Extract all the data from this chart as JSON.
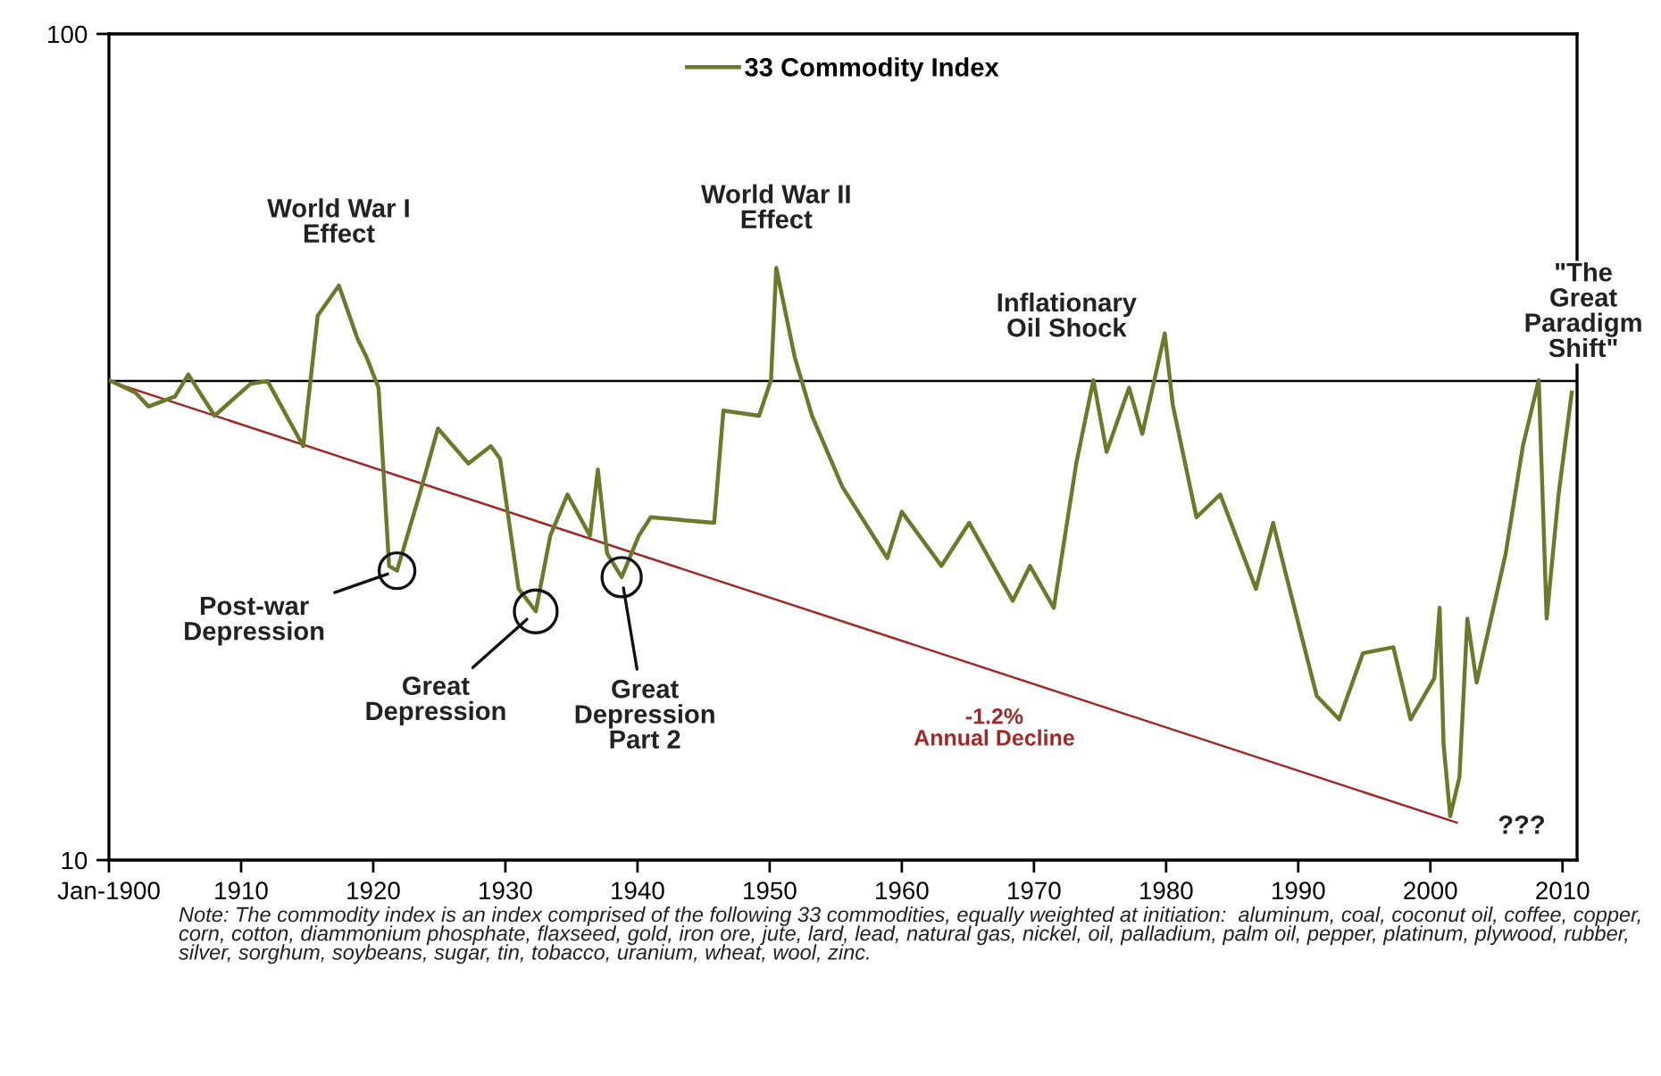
{
  "chart_data": {
    "type": "line",
    "x": [
      1900,
      1902,
      1903,
      1905,
      1906,
      1908,
      1910.7,
      1912,
      1914.7,
      1915.8,
      1917.4,
      1918.8,
      1919.5,
      1920.4,
      1921.2,
      1921.8,
      1923.5,
      1924.9,
      1927.2,
      1928.9,
      1929.6,
      1931,
      1932.3,
      1933.4,
      1934.7,
      1936.4,
      1937,
      1937.7,
      1938.8,
      1940.1,
      1941,
      1945.8,
      1946.5,
      1949.2,
      1950.1,
      1950.5,
      1951.9,
      1953.2,
      1955.5,
      1958.9,
      1960,
      1963,
      1965.1,
      1968.4,
      1969.7,
      1971.5,
      1973.2,
      1974.5,
      1975.5,
      1977.2,
      1978.2,
      1979.9,
      1980.5,
      1982.3,
      1984.1,
      1986.8,
      1988.1,
      1989,
      1991.4,
      1993.1,
      1994.9,
      1997.2,
      1998.5,
      2000.3,
      2000.7,
      2001,
      2001.5,
      2002.2,
      2002.8,
      2003.5,
      2005.7,
      2007,
      2008.2,
      2008.8,
      2009.7,
      2010.7
    ],
    "series": [
      {
        "name": "33 Commodity Index",
        "color": "#6b7a2a",
        "values": [
          38.1,
          36.8,
          35.4,
          36.4,
          38.7,
          34.5,
          37.7,
          38,
          31.7,
          45.6,
          49.6,
          42.8,
          40.6,
          37.3,
          22.7,
          22.4,
          27.7,
          33.3,
          30.2,
          31.7,
          30.6,
          21.3,
          20,
          24.7,
          27.7,
          24.7,
          29.7,
          23.5,
          22,
          24.7,
          26,
          25.6,
          35,
          34.5,
          38.1,
          52.1,
          40.6,
          34.5,
          28.3,
          23.2,
          26.4,
          22.7,
          25.6,
          20.6,
          22.7,
          20.2,
          30.2,
          38.1,
          31.2,
          37.3,
          32.8,
          43.4,
          35.6,
          26,
          27.7,
          21.3,
          25.6,
          22.4,
          15.8,
          14.8,
          17.8,
          18.1,
          14.8,
          16.6,
          20.2,
          13.8,
          11.3,
          12.6,
          19.6,
          16.4,
          23.5,
          31.7,
          38.1,
          19.6,
          27.7,
          36.8
        ]
      },
      {
        "type": "line",
        "color": "#a02828",
        "x": [
          1900,
          2002
        ],
        "values": [
          38,
          11.1
        ]
      }
    ],
    "log": "y",
    "xlim": [
      1900,
      2011.1
    ],
    "ylim": [
      10,
      100
    ],
    "xticks": [
      {
        "value": 1900,
        "label": "Jan-1900"
      },
      1910,
      1920,
      1930,
      1940,
      1950,
      1960,
      1970,
      1980,
      1990,
      2000,
      2010
    ],
    "yticks": [
      10,
      100
    ],
    "ref_lines": [
      {
        "axis": "y",
        "value": 38,
        "color": "#000000"
      }
    ],
    "legend": "top",
    "annotations": [
      {
        "text": "World War I\nEffect",
        "x": 1917.4,
        "y": 49.6
      },
      {
        "text": "World War II\nEffect",
        "x": 1950.5,
        "y": 52.1
      },
      {
        "text": "Inflationary\nOil Shock",
        "x": 1979.9,
        "y": 43.4
      },
      {
        "text": "\"The\nGreat\nParadigm\nShift\"",
        "x": 2008.2,
        "y": 38.1
      },
      {
        "text": "Post-war\nDepression",
        "x": 1921.8,
        "y": 22.4
      },
      {
        "text": "Great\nDepression",
        "x": 1932.3,
        "y": 20
      },
      {
        "text": "Great\nDepression\nPart 2",
        "x": 1938.8,
        "y": 22
      },
      {
        "text": "???",
        "x": 2001.5,
        "y": 11.3
      },
      {
        "text": "-1.2%\nAnnual Decline",
        "x": 1967,
        "y": 16.9
      },
      "Note: The commodity index is an index comprised of the following 33 commodities, equally weighted at initiation:  aluminum, coal, coconut oil, coffee, copper, corn, cotton, diammonium phosphate, flaxseed, gold, iron ore, jute, lard, lead, natural gas, nickel, oil, palladium, palm oil, pepper, platinum, plywood, rubber, silver, sorghum, soybeans, sugar, tin, tobacco, uranium, wheat, wool, zinc."
    ]
  }
}
